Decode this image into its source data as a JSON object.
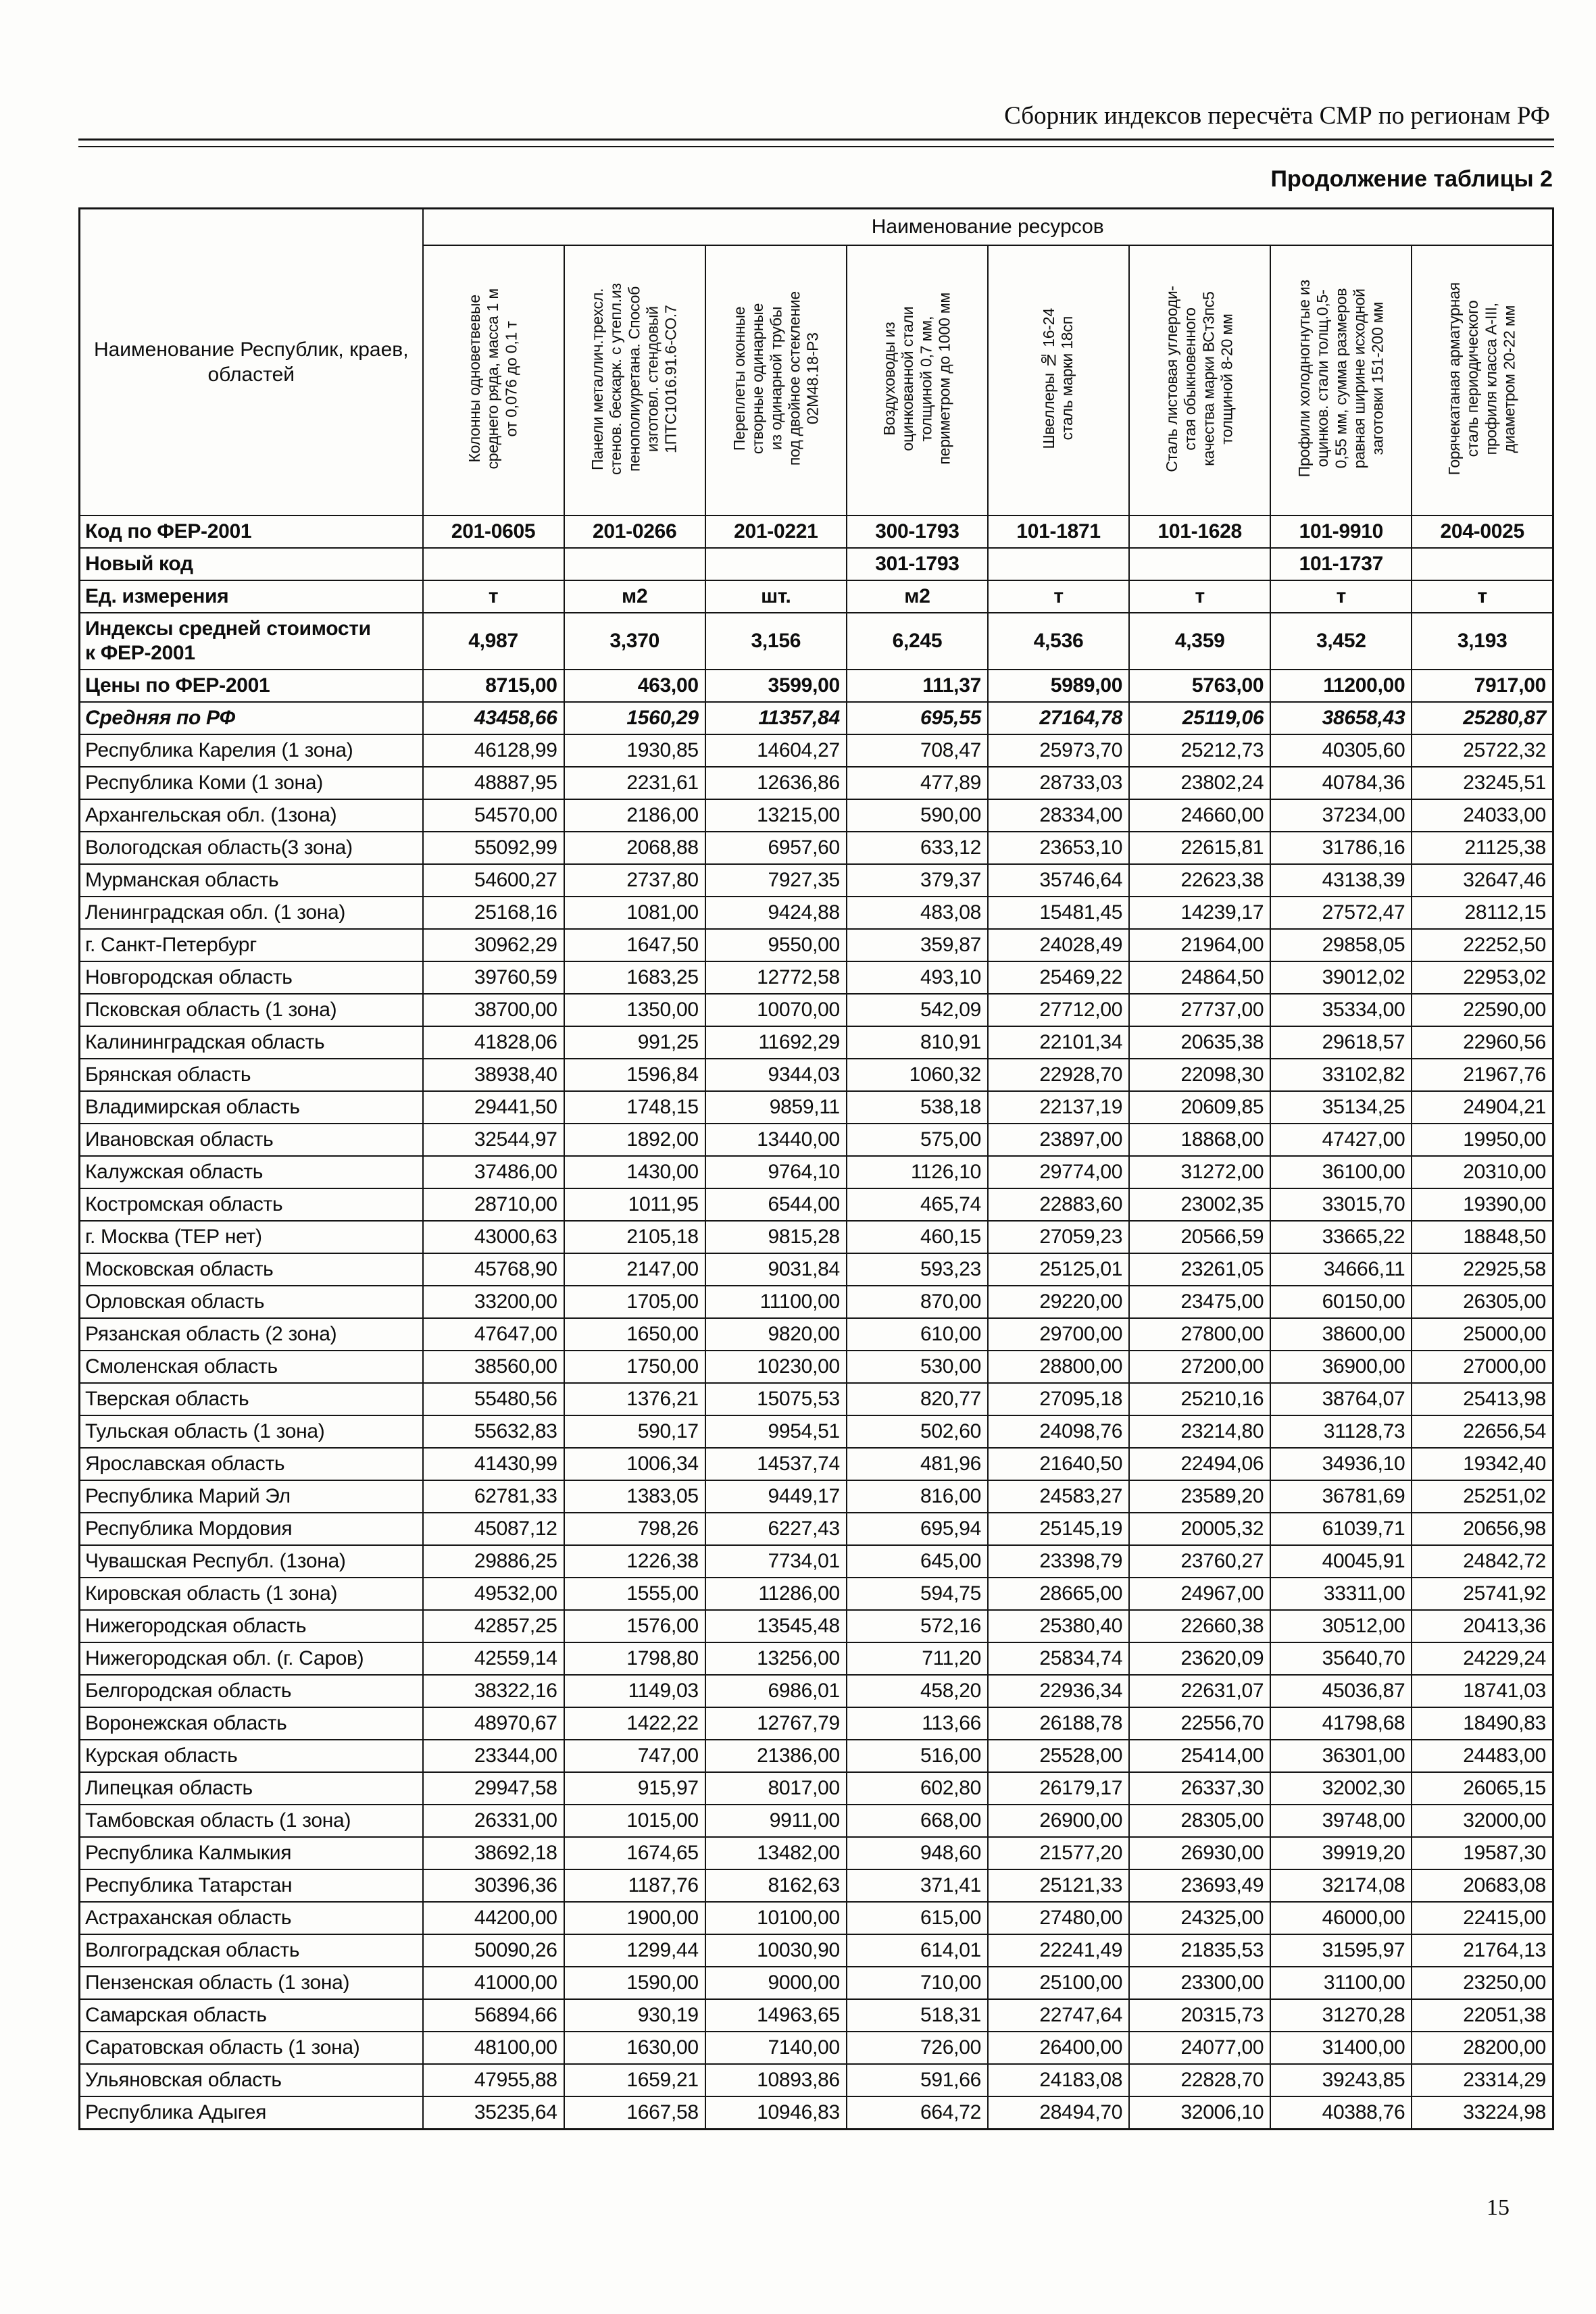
{
  "page": {
    "header_title": "Сборник индексов пересчёта СМР  по регионам РФ",
    "table_caption": "Продолжение таблицы 2",
    "page_number": "15"
  },
  "table": {
    "resources_header": "Наименование ресурсов",
    "first_col_header": "Наименование Республик, краев,\nобластей",
    "columns": [
      "Колонны одноветвевые\nсреднего ряда, масса 1 м\nот 0,076 до 0,1 т",
      "Панели металлич.трехсл.\nстенов. бескарк. с утепл.из\nпенополиуретана. Способ\nизготовл. стендовый\n1ПТС1016.91.6-СО.7",
      "Переплеты оконные\nстворные одинарные\nиз одинарной трубы\nпод двойное остекление\n02М48.18-Р3",
      "Воздуховоды из\nоцинкованной стали\nтолщиной 0,7 мм,\nпериметром до 1000 мм",
      "Швеллеры № 16-24\nсталь марки 18сп",
      "Сталь листовая углероди-\nстая обыкновенного\nкачества марки ВСт3пс5\nтолщиной 8-20 мм",
      "Профили холодногнутые из\nоцинков. стали толщ.0,5-\n0,55 мм, сумма размеров\nравная ширине исходной\nзаготовки 151-200 мм",
      "Горячекатаная арматурная\nсталь периодического\nпрофиля класса А-III,\nдиаметром 20-22 мм"
    ],
    "meta_rows": [
      {
        "label": "Код по ФЕР-2001",
        "align": "center",
        "italic": false,
        "values": [
          "201-0605",
          "201-0266",
          "201-0221",
          "300-1793",
          "101-1871",
          "101-1628",
          "101-9910",
          "204-0025"
        ]
      },
      {
        "label": "Новый код",
        "align": "center",
        "italic": false,
        "values": [
          "",
          "",
          "",
          "301-1793",
          "",
          "",
          "101-1737",
          ""
        ]
      },
      {
        "label": "Ед. измерения",
        "align": "center",
        "italic": false,
        "values": [
          "т",
          "м2",
          "шт.",
          "м2",
          "т",
          "т",
          "т",
          "т"
        ]
      },
      {
        "label": "Индексы средней стоимости\nк ФЕР-2001",
        "align": "center",
        "italic": false,
        "values": [
          "4,987",
          "3,370",
          "3,156",
          "6,245",
          "4,536",
          "4,359",
          "3,452",
          "3,193"
        ]
      },
      {
        "label": "Цены по ФЕР-2001",
        "align": "right",
        "italic": false,
        "values": [
          "8715,00",
          "463,00",
          "3599,00",
          "111,37",
          "5989,00",
          "5763,00",
          "11200,00",
          "7917,00"
        ]
      },
      {
        "label": "Средняя по РФ",
        "align": "right",
        "italic": true,
        "values": [
          "43458,66",
          "1560,29",
          "11357,84",
          "695,55",
          "27164,78",
          "25119,06",
          "38658,43",
          "25280,87"
        ]
      }
    ],
    "rows": [
      {
        "label": "Республика Карелия (1 зона)",
        "values": [
          "46128,99",
          "1930,85",
          "14604,27",
          "708,47",
          "25973,70",
          "25212,73",
          "40305,60",
          "25722,32"
        ]
      },
      {
        "label": "Республика Коми (1 зона)",
        "values": [
          "48887,95",
          "2231,61",
          "12636,86",
          "477,89",
          "28733,03",
          "23802,24",
          "40784,36",
          "23245,51"
        ]
      },
      {
        "label": "Архангельская обл. (1зона)",
        "values": [
          "54570,00",
          "2186,00",
          "13215,00",
          "590,00",
          "28334,00",
          "24660,00",
          "37234,00",
          "24033,00"
        ]
      },
      {
        "label": "Вологодская область(3 зона)",
        "values": [
          "55092,99",
          "2068,88",
          "6957,60",
          "633,12",
          "23653,10",
          "22615,81",
          "31786,16",
          "21125,38"
        ]
      },
      {
        "label": "Мурманская область",
        "values": [
          "54600,27",
          "2737,80",
          "7927,35",
          "379,37",
          "35746,64",
          "22623,38",
          "43138,39",
          "32647,46"
        ]
      },
      {
        "label": "Ленинградская обл. (1 зона)",
        "values": [
          "25168,16",
          "1081,00",
          "9424,88",
          "483,08",
          "15481,45",
          "14239,17",
          "27572,47",
          "28112,15"
        ]
      },
      {
        "label": "г. Санкт-Петербург",
        "values": [
          "30962,29",
          "1647,50",
          "9550,00",
          "359,87",
          "24028,49",
          "21964,00",
          "29858,05",
          "22252,50"
        ]
      },
      {
        "label": "Новгородская область",
        "values": [
          "39760,59",
          "1683,25",
          "12772,58",
          "493,10",
          "25469,22",
          "24864,50",
          "39012,02",
          "22953,02"
        ]
      },
      {
        "label": "Псковская область (1 зона)",
        "values": [
          "38700,00",
          "1350,00",
          "10070,00",
          "542,09",
          "27712,00",
          "27737,00",
          "35334,00",
          "22590,00"
        ]
      },
      {
        "label": "Калининградская область",
        "values": [
          "41828,06",
          "991,25",
          "11692,29",
          "810,91",
          "22101,34",
          "20635,38",
          "29618,57",
          "22960,56"
        ]
      },
      {
        "label": "Брянская область",
        "values": [
          "38938,40",
          "1596,84",
          "9344,03",
          "1060,32",
          "22928,70",
          "22098,30",
          "33102,82",
          "21967,76"
        ]
      },
      {
        "label": "Владимирская область",
        "values": [
          "29441,50",
          "1748,15",
          "9859,11",
          "538,18",
          "22137,19",
          "20609,85",
          "35134,25",
          "24904,21"
        ]
      },
      {
        "label": "Ивановская область",
        "values": [
          "32544,97",
          "1892,00",
          "13440,00",
          "575,00",
          "23897,00",
          "18868,00",
          "47427,00",
          "19950,00"
        ]
      },
      {
        "label": "Калужская область",
        "values": [
          "37486,00",
          "1430,00",
          "9764,10",
          "1126,10",
          "29774,00",
          "31272,00",
          "36100,00",
          "20310,00"
        ]
      },
      {
        "label": "Костромская область",
        "values": [
          "28710,00",
          "1011,95",
          "6544,00",
          "465,74",
          "22883,60",
          "23002,35",
          "33015,70",
          "19390,00"
        ]
      },
      {
        "label": "г. Москва (ТЕР нет)",
        "values": [
          "43000,63",
          "2105,18",
          "9815,28",
          "460,15",
          "27059,23",
          "20566,59",
          "33665,22",
          "18848,50"
        ]
      },
      {
        "label": "Московская  область",
        "values": [
          "45768,90",
          "2147,00",
          "9031,84",
          "593,23",
          "25125,01",
          "23261,05",
          "34666,11",
          "22925,58"
        ]
      },
      {
        "label": "Орловская область",
        "values": [
          "33200,00",
          "1705,00",
          "11100,00",
          "870,00",
          "29220,00",
          "23475,00",
          "60150,00",
          "26305,00"
        ]
      },
      {
        "label": "Рязанская область (2 зона)",
        "values": [
          "47647,00",
          "1650,00",
          "9820,00",
          "610,00",
          "29700,00",
          "27800,00",
          "38600,00",
          "25000,00"
        ]
      },
      {
        "label": "Смоленская область",
        "values": [
          "38560,00",
          "1750,00",
          "10230,00",
          "530,00",
          "28800,00",
          "27200,00",
          "36900,00",
          "27000,00"
        ]
      },
      {
        "label": "Тверская область",
        "values": [
          "55480,56",
          "1376,21",
          "15075,53",
          "820,77",
          "27095,18",
          "25210,16",
          "38764,07",
          "25413,98"
        ]
      },
      {
        "label": "Тульская область (1 зона)",
        "values": [
          "55632,83",
          "590,17",
          "9954,51",
          "502,60",
          "24098,76",
          "23214,80",
          "31128,73",
          "22656,54"
        ]
      },
      {
        "label": "Ярославская область",
        "values": [
          "41430,99",
          "1006,34",
          "14537,74",
          "481,96",
          "21640,50",
          "22494,06",
          "34936,10",
          "19342,40"
        ]
      },
      {
        "label": "Республика Марий Эл",
        "values": [
          "62781,33",
          "1383,05",
          "9449,17",
          "816,00",
          "24583,27",
          "23589,20",
          "36781,69",
          "25251,02"
        ]
      },
      {
        "label": "Республика Мордовия",
        "values": [
          "45087,12",
          "798,26",
          "6227,43",
          "695,94",
          "25145,19",
          "20005,32",
          "61039,71",
          "20656,98"
        ]
      },
      {
        "label": "Чувашская Республ. (1зона)",
        "values": [
          "29886,25",
          "1226,38",
          "7734,01",
          "645,00",
          "23398,79",
          "23760,27",
          "40045,91",
          "24842,72"
        ]
      },
      {
        "label": "Кировская область (1 зона)",
        "values": [
          "49532,00",
          "1555,00",
          "11286,00",
          "594,75",
          "28665,00",
          "24967,00",
          "33311,00",
          "25741,92"
        ]
      },
      {
        "label": "Нижегородская область",
        "values": [
          "42857,25",
          "1576,00",
          "13545,48",
          "572,16",
          "25380,40",
          "22660,38",
          "30512,00",
          "20413,36"
        ]
      },
      {
        "label": "Нижегородская обл. (г. Саров)",
        "values": [
          "42559,14",
          "1798,80",
          "13256,00",
          "711,20",
          "25834,74",
          "23620,09",
          "35640,70",
          "24229,24"
        ]
      },
      {
        "label": "Белгородская область",
        "values": [
          "38322,16",
          "1149,03",
          "6986,01",
          "458,20",
          "22936,34",
          "22631,07",
          "45036,87",
          "18741,03"
        ]
      },
      {
        "label": "Воронежская область",
        "values": [
          "48970,67",
          "1422,22",
          "12767,79",
          "113,66",
          "26188,78",
          "22556,70",
          "41798,68",
          "18490,83"
        ]
      },
      {
        "label": "Курская область",
        "values": [
          "23344,00",
          "747,00",
          "21386,00",
          "516,00",
          "25528,00",
          "25414,00",
          "36301,00",
          "24483,00"
        ]
      },
      {
        "label": "Липецкая область",
        "values": [
          "29947,58",
          "915,97",
          "8017,00",
          "602,80",
          "26179,17",
          "26337,30",
          "32002,30",
          "26065,15"
        ]
      },
      {
        "label": "Тамбовская область (1 зона)",
        "values": [
          "26331,00",
          "1015,00",
          "9911,00",
          "668,00",
          "26900,00",
          "28305,00",
          "39748,00",
          "32000,00"
        ]
      },
      {
        "label": "Республика Калмыкия",
        "values": [
          "38692,18",
          "1674,65",
          "13482,00",
          "948,60",
          "21577,20",
          "26930,00",
          "39919,20",
          "19587,30"
        ]
      },
      {
        "label": "Республика Татарстан",
        "values": [
          "30396,36",
          "1187,76",
          "8162,63",
          "371,41",
          "25121,33",
          "23693,49",
          "32174,08",
          "20683,08"
        ]
      },
      {
        "label": "Астраханская область",
        "values": [
          "44200,00",
          "1900,00",
          "10100,00",
          "615,00",
          "27480,00",
          "24325,00",
          "46000,00",
          "22415,00"
        ]
      },
      {
        "label": "Волгоградская область",
        "values": [
          "50090,26",
          "1299,44",
          "10030,90",
          "614,01",
          "22241,49",
          "21835,53",
          "31595,97",
          "21764,13"
        ]
      },
      {
        "label": "Пензенская область (1 зона)",
        "values": [
          "41000,00",
          "1590,00",
          "9000,00",
          "710,00",
          "25100,00",
          "23300,00",
          "31100,00",
          "23250,00"
        ]
      },
      {
        "label": "Самарская область",
        "values": [
          "56894,66",
          "930,19",
          "14963,65",
          "518,31",
          "22747,64",
          "20315,73",
          "31270,28",
          "22051,38"
        ]
      },
      {
        "label": "Саратовская область (1 зона)",
        "values": [
          "48100,00",
          "1630,00",
          "7140,00",
          "726,00",
          "26400,00",
          "24077,00",
          "31400,00",
          "28200,00"
        ]
      },
      {
        "label": "Ульяновская область",
        "values": [
          "47955,88",
          "1659,21",
          "10893,86",
          "591,66",
          "24183,08",
          "22828,70",
          "39243,85",
          "23314,29"
        ]
      },
      {
        "label": "Республика Адыгея",
        "values": [
          "35235,64",
          "1667,58",
          "10946,83",
          "664,72",
          "28494,70",
          "32006,10",
          "40388,76",
          "33224,98"
        ]
      }
    ]
  }
}
